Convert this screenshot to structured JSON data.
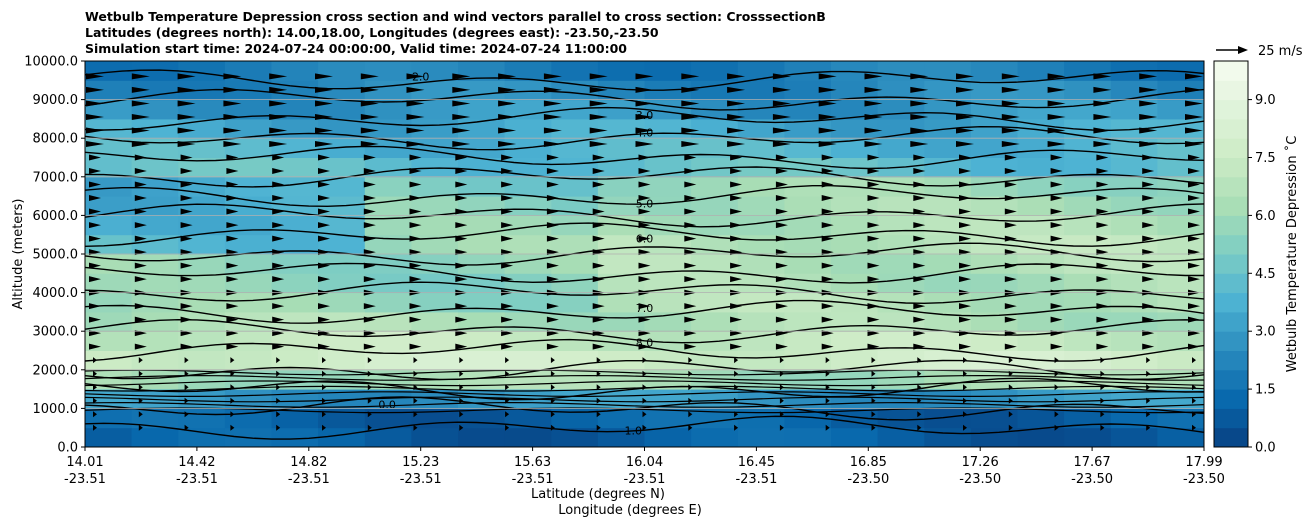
{
  "chart_data": {
    "type": "heatmap",
    "title_lines": [
      "Wetbulb Temperature Depression cross section and wind vectors parallel to cross section: CrosssectionB",
      "Latitudes (degrees north): 14.00,18.00, Longitudes (degrees east): -23.50,-23.50",
      "Simulation start time: 2024-07-24 00:00:00, Valid time: 2024-07-24 11:00:00"
    ],
    "ylabel": "Altitude (meters)",
    "xlabel_lat": "Latitude (degrees N)",
    "xlabel_lon": "Longitude (degrees E)",
    "ylim": [
      0,
      10000
    ],
    "yticks": [
      "0.0",
      "1000.0",
      "2000.0",
      "3000.0",
      "4000.0",
      "5000.0",
      "6000.0",
      "7000.0",
      "8000.0",
      "9000.0",
      "10000.0"
    ],
    "xticks": [
      {
        "lat": "14.01",
        "lon": "-23.51"
      },
      {
        "lat": "14.42",
        "lon": "-23.51"
      },
      {
        "lat": "14.82",
        "lon": "-23.51"
      },
      {
        "lat": "15.23",
        "lon": "-23.51"
      },
      {
        "lat": "15.63",
        "lon": "-23.51"
      },
      {
        "lat": "16.04",
        "lon": "-23.51"
      },
      {
        "lat": "16.45",
        "lon": "-23.51"
      },
      {
        "lat": "16.85",
        "lon": "-23.50"
      },
      {
        "lat": "17.26",
        "lon": "-23.50"
      },
      {
        "lat": "17.67",
        "lon": "-23.50"
      },
      {
        "lat": "17.99",
        "lon": "-23.50"
      }
    ],
    "colorbar": {
      "label": "Wetbulb Temperature Depression ˚C",
      "ticks": [
        "0.0",
        "1.5",
        "3.0",
        "4.5",
        "6.0",
        "7.5",
        "9.0"
      ],
      "range": [
        0,
        10
      ],
      "colormap": "GnBu_r"
    },
    "wind_key": "25 m/s",
    "grid": "horizontal",
    "profile_altitudes": [
      0,
      500,
      1000,
      1500,
      2000,
      2500,
      3000,
      3500,
      4000,
      4500,
      5000,
      5500,
      6000,
      6500,
      7000,
      7500,
      8000,
      8500,
      9000,
      9500,
      10000
    ],
    "profile_values": [
      1.0,
      0.8,
      1.2,
      4.5,
      7.9,
      7.6,
      6.8,
      6.0,
      5.4,
      5.5,
      5.8,
      5.9,
      5.2,
      5.4,
      4.6,
      4.0,
      3.8,
      3.0,
      2.6,
      2.1,
      1.8
    ],
    "contour_labels": [
      "2.0",
      "3.0",
      "4.0",
      "5.0",
      "6.0",
      "7.0",
      "8.0",
      "1.0",
      "0.0"
    ]
  }
}
